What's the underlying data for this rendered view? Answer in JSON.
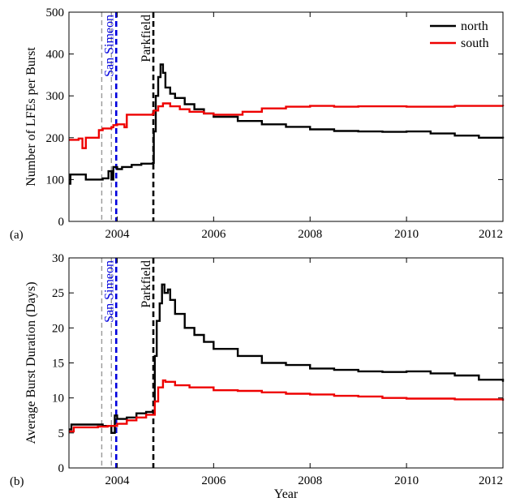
{
  "chart_data": [
    {
      "type": "line",
      "panel_label": "(a)",
      "xlabel": "",
      "ylabel": "Number of LFEs per Burst",
      "xlim": [
        2003,
        2012
      ],
      "ylim": [
        0,
        500
      ],
      "xticks": [
        2004,
        2006,
        2008,
        2010,
        2012
      ],
      "yticks": [
        0,
        100,
        200,
        300,
        400,
        500
      ],
      "grid": false,
      "legend_placement": "top-right",
      "events": [
        {
          "name": "",
          "x": 2003.68,
          "color": "#999999"
        },
        {
          "name": "",
          "x": 2003.88,
          "color": "#999999"
        },
        {
          "name": "San Simeon",
          "x": 2003.98,
          "color": "#0000dd"
        },
        {
          "name": "Parkfield",
          "x": 2004.75,
          "color": "#000000"
        }
      ],
      "series": [
        {
          "name": "north",
          "color": "#000000",
          "x": [
            2003.0,
            2003.03,
            2003.08,
            2003.35,
            2003.5,
            2003.7,
            2003.82,
            2003.88,
            2003.92,
            2004.0,
            2004.1,
            2004.3,
            2004.5,
            2004.74,
            2004.76,
            2004.8,
            2004.85,
            2004.9,
            2004.95,
            2005.0,
            2005.1,
            2005.2,
            2005.4,
            2005.6,
            2005.8,
            2006.0,
            2006.5,
            2007.0,
            2007.5,
            2008.0,
            2008.5,
            2009.0,
            2009.5,
            2010.0,
            2010.5,
            2011.0,
            2011.5,
            2012.0
          ],
          "values": [
            90,
            112,
            112,
            100,
            100,
            103,
            120,
            100,
            130,
            125,
            130,
            135,
            138,
            140,
            215,
            300,
            345,
            375,
            355,
            320,
            305,
            295,
            280,
            268,
            258,
            250,
            240,
            232,
            226,
            220,
            216,
            215,
            214,
            215,
            210,
            205,
            200,
            198
          ]
        },
        {
          "name": "south",
          "color": "#ee0000",
          "x": [
            2003.0,
            2003.2,
            2003.28,
            2003.35,
            2003.5,
            2003.62,
            2003.7,
            2003.88,
            2003.92,
            2004.0,
            2004.15,
            2004.2,
            2004.5,
            2004.74,
            2004.76,
            2004.85,
            2004.95,
            2005.1,
            2005.3,
            2005.5,
            2005.8,
            2006.0,
            2006.3,
            2006.6,
            2007.0,
            2007.5,
            2008.0,
            2008.5,
            2009.0,
            2009.5,
            2010.0,
            2010.5,
            2011.0,
            2011.5,
            2012.0
          ],
          "values": [
            195,
            198,
            175,
            200,
            200,
            218,
            222,
            225,
            230,
            232,
            225,
            255,
            255,
            258,
            265,
            275,
            282,
            275,
            268,
            262,
            258,
            255,
            255,
            262,
            270,
            274,
            276,
            274,
            275,
            275,
            274,
            274,
            276,
            276,
            275
          ]
        }
      ]
    },
    {
      "type": "line",
      "panel_label": "(b)",
      "xlabel": "Year",
      "ylabel": "Average Burst Duration (Days)",
      "xlim": [
        2003,
        2012
      ],
      "ylim": [
        0,
        30
      ],
      "xticks": [
        2004,
        2006,
        2008,
        2010,
        2012
      ],
      "yticks": [
        0,
        5,
        10,
        15,
        20,
        25,
        30
      ],
      "grid": false,
      "events": [
        {
          "name": "",
          "x": 2003.68,
          "color": "#999999"
        },
        {
          "name": "",
          "x": 2003.88,
          "color": "#999999"
        },
        {
          "name": "San Simeon",
          "x": 2003.98,
          "color": "#0000dd"
        },
        {
          "name": "Parkfield",
          "x": 2004.75,
          "color": "#000000"
        }
      ],
      "series": [
        {
          "name": "north",
          "color": "#000000",
          "x": [
            2003.0,
            2003.05,
            2003.4,
            2003.7,
            2003.82,
            2003.88,
            2003.95,
            2004.0,
            2004.2,
            2004.4,
            2004.6,
            2004.74,
            2004.78,
            2004.82,
            2004.88,
            2004.93,
            2004.98,
            2005.05,
            2005.1,
            2005.2,
            2005.4,
            2005.6,
            2005.8,
            2006.0,
            2006.5,
            2007.0,
            2007.5,
            2008.0,
            2008.5,
            2009.0,
            2009.5,
            2010.0,
            2010.5,
            2011.0,
            2011.5,
            2012.0
          ],
          "values": [
            5.5,
            6.2,
            6.2,
            6.0,
            6.0,
            5.0,
            7.5,
            7.0,
            7.2,
            7.8,
            8.0,
            8.2,
            16.0,
            21.0,
            23.5,
            26.2,
            25.0,
            25.5,
            24.0,
            22.0,
            20.0,
            19.0,
            18.0,
            17.0,
            16.0,
            15.0,
            14.7,
            14.2,
            14.0,
            13.8,
            13.7,
            13.8,
            13.5,
            13.2,
            12.6,
            12.3
          ]
        },
        {
          "name": "south",
          "color": "#ee0000",
          "x": [
            2003.0,
            2003.1,
            2003.4,
            2003.6,
            2003.8,
            2004.0,
            2004.2,
            2004.4,
            2004.6,
            2004.74,
            2004.78,
            2004.85,
            2004.95,
            2005.0,
            2005.2,
            2005.5,
            2006.0,
            2006.5,
            2007.0,
            2007.5,
            2008.0,
            2008.5,
            2009.0,
            2009.5,
            2010.0,
            2010.5,
            2011.0,
            2011.5,
            2012.0
          ],
          "values": [
            5.2,
            5.8,
            5.8,
            5.9,
            6.0,
            6.3,
            6.8,
            7.2,
            7.6,
            7.6,
            9.5,
            11.5,
            12.5,
            12.3,
            11.8,
            11.5,
            11.1,
            11.0,
            10.8,
            10.6,
            10.5,
            10.3,
            10.2,
            10.0,
            9.9,
            9.9,
            9.8,
            9.8,
            9.6
          ]
        }
      ]
    }
  ]
}
